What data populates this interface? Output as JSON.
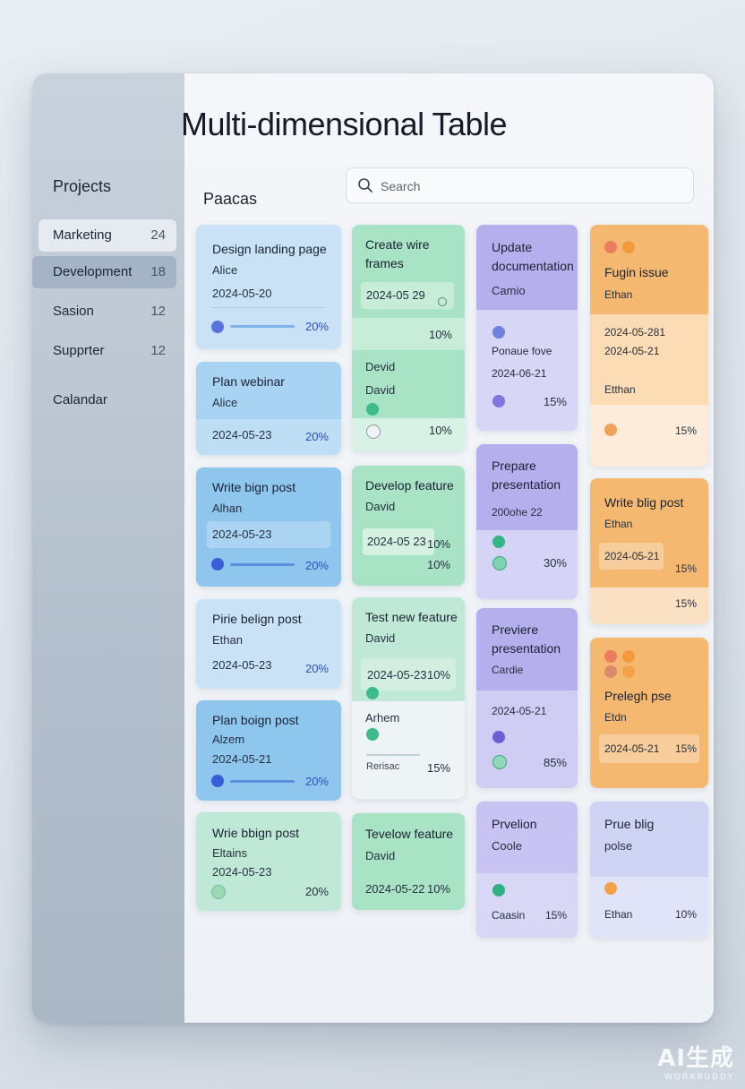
{
  "app": {
    "title": "Multi-dimensional Table",
    "section": "Paacas"
  },
  "search": {
    "placeholder": "Search"
  },
  "sidebar": {
    "heading": "Projects",
    "items": [
      {
        "label": "Marketing",
        "count": "24"
      },
      {
        "label": "Development",
        "count": "18"
      },
      {
        "label": "Sasion",
        "count": "12"
      },
      {
        "label": "Supprter",
        "count": "12"
      }
    ],
    "calendar": "Calandar"
  },
  "cards": {
    "c1": {
      "title": "Design landing page",
      "person": "Alice",
      "date": "2024-05-20",
      "pct": "20%"
    },
    "c2": {
      "title": "Plan webinar",
      "person": "Alice",
      "date": "2024-05-23",
      "pct": "20%"
    },
    "c3": {
      "title": "Write bign post",
      "person": "Alhan",
      "date": "2024-05-23",
      "pct": "20%"
    },
    "c4": {
      "title": "Pirie belign post",
      "person": "Ethan",
      "date": "2024-05-23",
      "pct": "20%"
    },
    "c5": {
      "title": "Plan boign post",
      "person": "Alzem",
      "date": "2024-05-21",
      "pct": "20%"
    },
    "c6": {
      "title": "Wrie bbign post",
      "person": "Eltains",
      "date": "2024-05-23",
      "pct": "20%"
    },
    "g1": {
      "title": "Create wire frames",
      "date": "2024-05 29",
      "pct1": "10%",
      "person1": "Devid",
      "person2": "David",
      "pct2": "10%"
    },
    "g2": {
      "title": "Develop feature",
      "person": "David",
      "date": "2024-05 23",
      "pct1": "10%",
      "pct2": "10%"
    },
    "g3": {
      "title": "Test new feature",
      "person": "David",
      "date": "2024-05-23",
      "pct1": "10%",
      "person2": "Arhem",
      "note": "Rerisac",
      "pct2": "15%"
    },
    "g4": {
      "title": "Tevelow feature",
      "person": "David",
      "date": "2024-05-22",
      "pct": "10%"
    },
    "p1": {
      "title": "Update documentation",
      "person": "Camio",
      "note": "Ponaue fove",
      "date": "2024-06-21",
      "pct": "15%"
    },
    "p2": {
      "title": "Prepare presentation",
      "date": "200ohe 22",
      "pct": "30%"
    },
    "p3": {
      "title": "Previere presentation",
      "person": "Cardie",
      "date": "2024-05-21",
      "pct": "85%"
    },
    "p4": {
      "title": "Prvelion",
      "person": "Coole",
      "person2": "Caasin",
      "pct": "15%"
    },
    "o1": {
      "title": "Fugin issue",
      "person": "Ethan",
      "date1": "2024-05-281",
      "date2": "2024-05-21",
      "person2": "Etthan",
      "pct": "15%"
    },
    "o2": {
      "title": "Write blig post",
      "person": "Ethan",
      "date": "2024-05-21",
      "pct1": "15%",
      "pct2": "15%"
    },
    "o3": {
      "title": "Prelegh pse",
      "person": "Etdn",
      "date": "2024-05-21",
      "pct": "15%"
    },
    "o4": {
      "title": "Prue blig",
      "person": "polse",
      "person2": "Ethan",
      "pct": "10%"
    }
  },
  "watermark": {
    "main": "AI生成",
    "sub": "WORKBUDDY"
  }
}
